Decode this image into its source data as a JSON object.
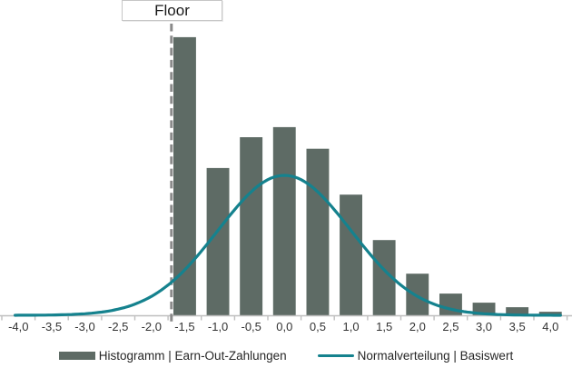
{
  "annotation": {
    "label": "Floor"
  },
  "legend": {
    "items": [
      {
        "label": "Histogramm | Earn-Out-Zahlungen",
        "marker": "swatch"
      },
      {
        "label": "Normalverteilung | Basiswert",
        "marker": "line"
      }
    ],
    "position": "bottom"
  },
  "colors": {
    "bar": "#5E6B65",
    "curve": "#15828E",
    "axis": "#BFBFBF",
    "floor_line": "#8A8A8A",
    "tick_text": "#333333",
    "legend_text": "#262626",
    "floor_box_border": "#C6C6C6",
    "background": "#FFFFFF"
  },
  "chart_data": {
    "type": "bar",
    "subtype": "histogram_with_normal_curve_overlay",
    "title": "",
    "xlabel": "",
    "ylabel": "",
    "x_range": [
      -4.0,
      4.0
    ],
    "x_tick_step": 0.5,
    "x_ticks": [
      {
        "value": -4.0,
        "label": "-4,0"
      },
      {
        "value": -3.5,
        "label": "-3,5"
      },
      {
        "value": -3.0,
        "label": "-3,0"
      },
      {
        "value": -2.5,
        "label": "-2,5"
      },
      {
        "value": -2.0,
        "label": "-2,0"
      },
      {
        "value": -1.5,
        "label": "-1,5"
      },
      {
        "value": -1.0,
        "label": "-1,0"
      },
      {
        "value": -0.5,
        "label": "-0,5"
      },
      {
        "value": 0.0,
        "label": "0,0"
      },
      {
        "value": 0.5,
        "label": "0,5"
      },
      {
        "value": 1.0,
        "label": "1,0"
      },
      {
        "value": 1.5,
        "label": "1,5"
      },
      {
        "value": 2.0,
        "label": "2,0"
      },
      {
        "value": 2.5,
        "label": "2,5"
      },
      {
        "value": 3.0,
        "label": "3,0"
      },
      {
        "value": 3.5,
        "label": "3,5"
      },
      {
        "value": 4.0,
        "label": "4,0"
      }
    ],
    "bars": {
      "name": "Histogramm | Earn-Out-Zahlungen",
      "note": "relative density, unitless; no value axis shown; curve peak corresponds to 0.40",
      "categories": [
        -1.5,
        -1.0,
        -0.5,
        0.0,
        0.5,
        1.0,
        1.5,
        2.0,
        2.5,
        3.0,
        3.5,
        4.0
      ],
      "values": [
        0.795,
        0.421,
        0.509,
        0.538,
        0.476,
        0.345,
        0.215,
        0.119,
        0.062,
        0.036,
        0.023,
        0.01
      ],
      "bar_width_units": 0.34
    },
    "curve": {
      "name": "Normalverteilung | Basiswert",
      "shape": "normal_pdf",
      "mean": 0.0,
      "sd": 1.0,
      "peak_value": 0.4,
      "x_min": -4.05,
      "x_max": 4.15
    },
    "floor": {
      "label": "Floor",
      "x": -1.7
    },
    "grid": false,
    "y_axis_visible": false,
    "legend_position": "bottom"
  }
}
